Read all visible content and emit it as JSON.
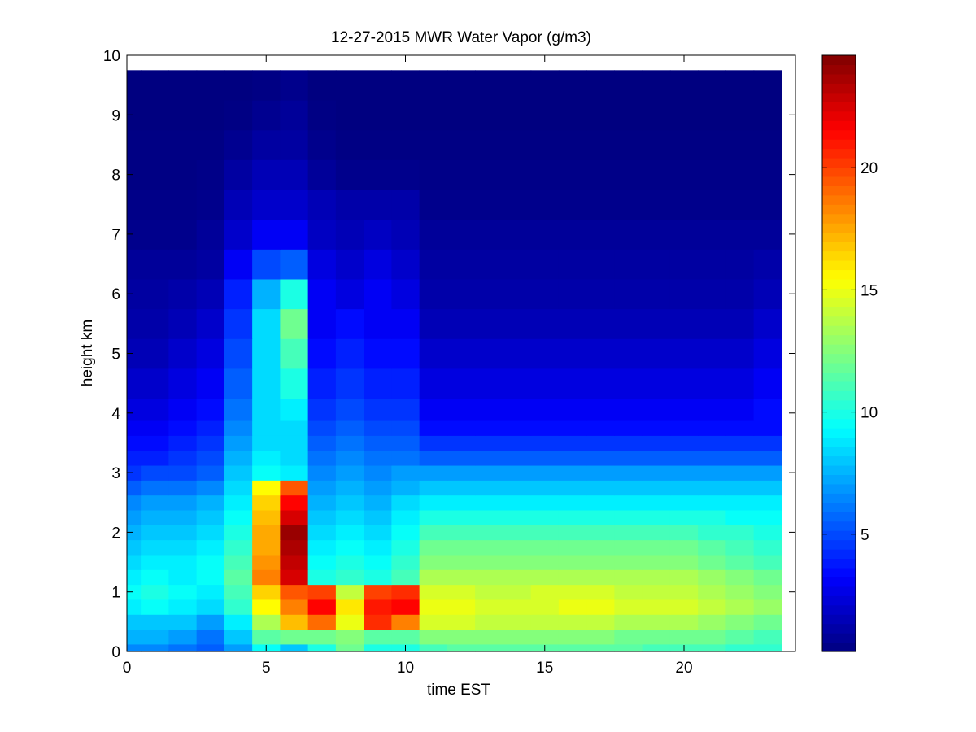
{
  "chart_data": {
    "type": "heatmap",
    "title": "12-27-2015 MWR Water Vapor (g/m3)",
    "xlabel": "time EST",
    "ylabel": "height km",
    "xlim": [
      0,
      24
    ],
    "ylim": [
      0,
      10
    ],
    "x_ticks": [
      0,
      5,
      10,
      15,
      20
    ],
    "y_ticks": [
      0,
      1,
      2,
      3,
      4,
      5,
      6,
      7,
      8,
      9,
      10
    ],
    "colorbar": {
      "colormap": "jet",
      "range": [
        0.2,
        24.6
      ],
      "ticks": [
        5,
        10,
        15,
        20
      ]
    },
    "x_centers_hours": [
      0,
      1,
      2,
      3,
      4,
      5,
      6,
      7,
      8,
      9,
      10,
      11,
      12,
      13,
      14,
      15,
      16,
      17,
      18,
      19,
      20,
      21,
      22,
      23
    ],
    "y_centers_km": [
      0.0,
      0.25,
      0.5,
      0.75,
      1.0,
      1.25,
      1.5,
      1.75,
      2.0,
      2.25,
      2.5,
      2.75,
      3.0,
      3.25,
      3.5,
      3.75,
      4.0,
      4.5,
      5.0,
      5.5,
      6.0,
      6.5,
      7.0,
      7.5,
      8.0,
      8.5,
      9.0,
      9.5
    ],
    "values": [
      [
        6.5,
        6.5,
        6.0,
        5.5,
        7.0,
        9.5,
        8.0,
        10.0,
        12.0,
        10.0,
        10.0,
        11.0,
        11.5,
        11.5,
        11.5,
        11.5,
        11.5,
        11.5,
        11.5,
        11.0,
        11.0,
        11.0,
        10.5,
        10.5
      ],
      [
        7.5,
        7.5,
        7.0,
        6.0,
        8.0,
        11.5,
        12.0,
        12.0,
        12.5,
        11.5,
        11.5,
        12.5,
        12.5,
        12.5,
        12.5,
        12.5,
        12.5,
        12.5,
        12.0,
        12.0,
        12.0,
        12.0,
        11.5,
        11.0
      ],
      [
        8.0,
        8.0,
        8.0,
        7.0,
        9.0,
        13.5,
        17.0,
        19.0,
        15.0,
        20.5,
        18.5,
        14.5,
        14.5,
        14.0,
        14.0,
        14.0,
        14.0,
        14.0,
        13.5,
        13.5,
        13.5,
        13.0,
        12.5,
        12.0
      ],
      [
        9.0,
        9.5,
        9.0,
        8.5,
        10.5,
        15.5,
        18.5,
        21.5,
        16.0,
        21.0,
        21.5,
        15.0,
        15.0,
        14.5,
        14.5,
        14.5,
        15.0,
        15.0,
        14.5,
        14.5,
        14.5,
        14.0,
        13.5,
        13.0
      ],
      [
        9.5,
        10.0,
        9.5,
        9.0,
        11.0,
        16.5,
        19.5,
        20.0,
        14.0,
        20.0,
        20.5,
        14.5,
        14.5,
        14.0,
        14.0,
        14.5,
        14.5,
        14.5,
        14.0,
        14.0,
        14.0,
        13.5,
        13.0,
        12.5
      ],
      [
        9.0,
        9.5,
        9.0,
        9.5,
        11.5,
        18.5,
        22.5,
        10.0,
        10.5,
        10.0,
        11.0,
        13.5,
        13.5,
        13.5,
        13.5,
        13.5,
        13.5,
        13.5,
        13.5,
        13.5,
        13.5,
        13.0,
        12.5,
        12.0
      ],
      [
        8.5,
        9.0,
        9.0,
        9.5,
        11.0,
        18.0,
        23.0,
        9.5,
        10.0,
        9.5,
        10.5,
        12.5,
        12.5,
        12.5,
        12.5,
        12.5,
        12.5,
        12.5,
        12.5,
        12.5,
        12.5,
        12.0,
        11.5,
        11.0
      ],
      [
        8.0,
        8.5,
        8.5,
        9.0,
        10.5,
        17.5,
        23.5,
        9.0,
        9.5,
        9.0,
        10.0,
        12.0,
        12.0,
        12.0,
        12.0,
        12.0,
        12.0,
        12.0,
        12.0,
        12.0,
        12.0,
        11.5,
        11.0,
        10.5
      ],
      [
        7.5,
        8.0,
        8.0,
        8.5,
        10.0,
        17.5,
        24.0,
        8.5,
        9.0,
        8.5,
        9.5,
        11.0,
        11.0,
        11.0,
        11.0,
        11.0,
        11.0,
        11.0,
        11.0,
        11.0,
        11.0,
        10.5,
        10.5,
        10.0
      ],
      [
        7.0,
        7.5,
        7.5,
        8.0,
        9.5,
        17.0,
        22.5,
        8.0,
        8.5,
        8.0,
        9.0,
        10.0,
        10.0,
        10.0,
        10.0,
        10.0,
        10.0,
        10.0,
        10.0,
        10.0,
        10.0,
        10.0,
        9.5,
        9.5
      ],
      [
        6.5,
        7.0,
        7.0,
        7.5,
        9.0,
        16.5,
        21.5,
        7.5,
        8.0,
        7.5,
        8.5,
        9.0,
        9.0,
        9.0,
        9.0,
        9.0,
        9.0,
        9.0,
        9.0,
        9.0,
        9.0,
        9.0,
        9.0,
        9.0
      ],
      [
        5.5,
        6.0,
        6.0,
        6.5,
        8.5,
        15.5,
        19.5,
        7.0,
        7.5,
        7.0,
        7.5,
        8.0,
        8.0,
        8.0,
        8.0,
        8.0,
        8.0,
        8.0,
        8.0,
        8.0,
        8.0,
        8.0,
        8.0,
        8.0
      ],
      [
        4.5,
        5.0,
        5.0,
        5.5,
        8.0,
        9.5,
        9.0,
        6.5,
        7.0,
        6.5,
        7.0,
        7.0,
        7.0,
        7.0,
        7.0,
        7.0,
        7.0,
        7.0,
        7.0,
        7.0,
        7.0,
        7.0,
        7.0,
        7.0
      ],
      [
        4.0,
        4.0,
        4.5,
        5.0,
        7.5,
        9.0,
        8.5,
        6.0,
        6.5,
        6.0,
        6.0,
        5.5,
        5.5,
        5.5,
        5.5,
        5.5,
        5.5,
        5.5,
        5.5,
        5.5,
        5.5,
        5.5,
        5.5,
        5.5
      ],
      [
        3.5,
        3.5,
        4.0,
        4.5,
        7.0,
        8.5,
        8.5,
        5.5,
        6.0,
        5.5,
        5.5,
        4.5,
        4.5,
        4.5,
        4.5,
        4.5,
        4.5,
        4.5,
        4.5,
        4.5,
        4.5,
        4.5,
        4.5,
        4.5
      ],
      [
        3.0,
        3.0,
        3.5,
        4.0,
        6.5,
        8.5,
        8.5,
        5.0,
        5.5,
        5.0,
        5.0,
        3.5,
        3.5,
        3.5,
        3.5,
        3.5,
        3.5,
        3.5,
        3.5,
        3.5,
        3.5,
        3.5,
        3.5,
        3.5
      ],
      [
        2.5,
        2.5,
        3.0,
        3.5,
        6.0,
        8.5,
        9.0,
        4.5,
        5.0,
        4.5,
        4.5,
        3.0,
        3.0,
        3.0,
        3.0,
        3.0,
        3.0,
        3.0,
        3.0,
        3.0,
        3.0,
        3.0,
        3.0,
        3.5
      ],
      [
        2.0,
        2.0,
        2.5,
        3.0,
        5.5,
        8.5,
        10.0,
        4.0,
        4.5,
        4.0,
        4.0,
        2.5,
        2.5,
        2.5,
        2.5,
        2.5,
        2.5,
        2.5,
        2.5,
        2.5,
        2.5,
        2.5,
        2.5,
        3.0
      ],
      [
        1.5,
        1.5,
        2.0,
        2.5,
        5.0,
        8.5,
        11.0,
        3.5,
        4.0,
        3.5,
        3.5,
        2.0,
        2.0,
        2.0,
        2.0,
        2.0,
        2.0,
        2.0,
        2.0,
        2.0,
        2.0,
        2.0,
        2.0,
        2.5
      ],
      [
        1.2,
        1.2,
        1.5,
        2.0,
        4.5,
        8.5,
        12.0,
        3.0,
        3.5,
        3.0,
        3.0,
        1.5,
        1.5,
        1.5,
        1.5,
        1.5,
        1.5,
        1.5,
        1.5,
        1.5,
        1.5,
        1.5,
        1.5,
        2.0
      ],
      [
        1.0,
        1.0,
        1.2,
        1.5,
        4.0,
        7.5,
        10.0,
        3.0,
        2.5,
        3.0,
        2.5,
        1.2,
        1.2,
        1.2,
        1.2,
        1.2,
        1.2,
        1.2,
        1.2,
        1.2,
        1.2,
        1.2,
        1.2,
        1.5
      ],
      [
        0.8,
        0.8,
        0.8,
        1.0,
        3.0,
        5.0,
        5.5,
        2.5,
        2.0,
        2.5,
        2.0,
        1.0,
        1.0,
        1.0,
        1.0,
        1.0,
        1.0,
        1.0,
        1.0,
        1.0,
        1.0,
        1.0,
        1.0,
        1.2
      ],
      [
        0.5,
        0.5,
        0.5,
        0.8,
        2.0,
        3.0,
        3.0,
        1.8,
        1.5,
        1.8,
        1.5,
        0.8,
        0.8,
        0.8,
        0.8,
        0.8,
        0.8,
        0.8,
        0.8,
        0.8,
        0.8,
        0.8,
        0.8,
        0.8
      ],
      [
        0.4,
        0.4,
        0.4,
        0.5,
        1.5,
        2.0,
        2.0,
        1.5,
        1.2,
        1.2,
        1.2,
        0.5,
        0.5,
        0.5,
        0.5,
        0.5,
        0.5,
        0.5,
        0.5,
        0.5,
        0.5,
        0.5,
        0.5,
        0.5
      ],
      [
        0.3,
        0.3,
        0.3,
        0.4,
        1.0,
        1.5,
        1.5,
        0.8,
        0.5,
        0.5,
        0.5,
        0.4,
        0.4,
        0.4,
        0.4,
        0.4,
        0.4,
        0.4,
        0.4,
        0.4,
        0.4,
        0.4,
        0.4,
        0.4
      ],
      [
        0.3,
        0.3,
        0.3,
        0.3,
        0.6,
        1.0,
        1.0,
        0.5,
        0.3,
        0.3,
        0.3,
        0.3,
        0.3,
        0.3,
        0.3,
        0.3,
        0.3,
        0.3,
        0.3,
        0.3,
        0.3,
        0.3,
        0.3,
        0.3
      ],
      [
        0.2,
        0.2,
        0.2,
        0.2,
        0.3,
        0.6,
        0.8,
        0.3,
        0.2,
        0.2,
        0.2,
        0.2,
        0.2,
        0.2,
        0.2,
        0.2,
        0.2,
        0.2,
        0.2,
        0.2,
        0.2,
        0.2,
        0.2,
        0.2
      ],
      [
        0.2,
        0.2,
        0.2,
        0.2,
        0.2,
        0.3,
        0.5,
        0.2,
        0.2,
        0.2,
        0.2,
        0.2,
        0.2,
        0.2,
        0.2,
        0.2,
        0.2,
        0.2,
        0.2,
        0.2,
        0.2,
        0.2,
        0.2,
        0.2
      ]
    ]
  }
}
